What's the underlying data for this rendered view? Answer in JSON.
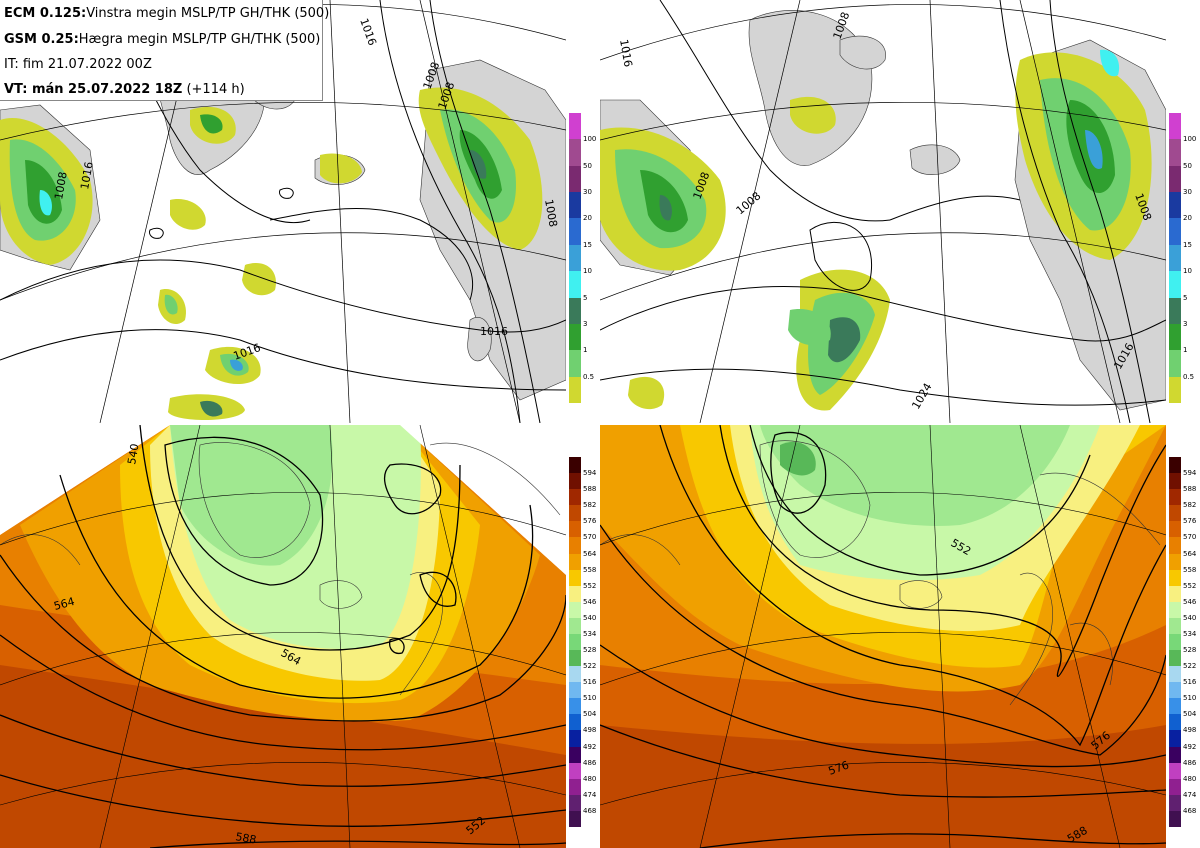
{
  "info": {
    "line1_bold": "ECM 0.125:",
    "line1_text": "Vinstra megin MSLP/TP GH/THK (500)",
    "line2_bold": "GSM 0.25:",
    "line2_text": "Hægra megin MSLP/TP GH/THK (500)",
    "line3_text": "IT: fim 21.07.2022 00Z",
    "line4_bold": "VT: mán 25.07.2022 18Z",
    "line4_text": " (+114 h)"
  },
  "precip_colorbar": {
    "labels": [
      "100",
      "50",
      "30",
      "20",
      "15",
      "10",
      "5",
      "3",
      "1",
      "0.5"
    ],
    "colors": [
      "#d040d0",
      "#a04a90",
      "#7a2a70",
      "#1a3aa0",
      "#2a6ad0",
      "#3aa0d8",
      "#40f0f0",
      "#3a7a5a",
      "#30a030",
      "#70d070",
      "#d0d830"
    ]
  },
  "thk_colorbar": {
    "labels": [
      "594",
      "588",
      "582",
      "576",
      "570",
      "564",
      "558",
      "552",
      "546",
      "540",
      "534",
      "528",
      "522",
      "516",
      "510",
      "504",
      "498",
      "492",
      "486",
      "480",
      "474",
      "468"
    ],
    "colors": [
      "#3a0000",
      "#701000",
      "#a02800",
      "#c04800",
      "#d86000",
      "#e88000",
      "#f0a000",
      "#f8c800",
      "#f8f080",
      "#c8f8a8",
      "#a0e890",
      "#78d878",
      "#58b858",
      "#a8d8f0",
      "#70b8f0",
      "#3890e8",
      "#1060d0",
      "#0820a0",
      "#3a0060",
      "#c040c0",
      "#902090",
      "#602070",
      "#401050"
    ]
  },
  "map_labels": {
    "tl": [
      "1016",
      "1008",
      "1008",
      "1016",
      "1008",
      "1016",
      "1008",
      "1016"
    ],
    "tr": [
      "1016",
      "1008",
      "1008",
      "1008",
      "1008",
      "1024",
      "1016"
    ],
    "bl": [
      "564",
      "564",
      "588",
      "540",
      "552"
    ],
    "br": [
      "552",
      "576",
      "576",
      "588"
    ]
  },
  "colors": {
    "land": "#d4d4d4",
    "sea": "#ffffff",
    "contour": "#000000",
    "thk_warm": "#c04800"
  }
}
